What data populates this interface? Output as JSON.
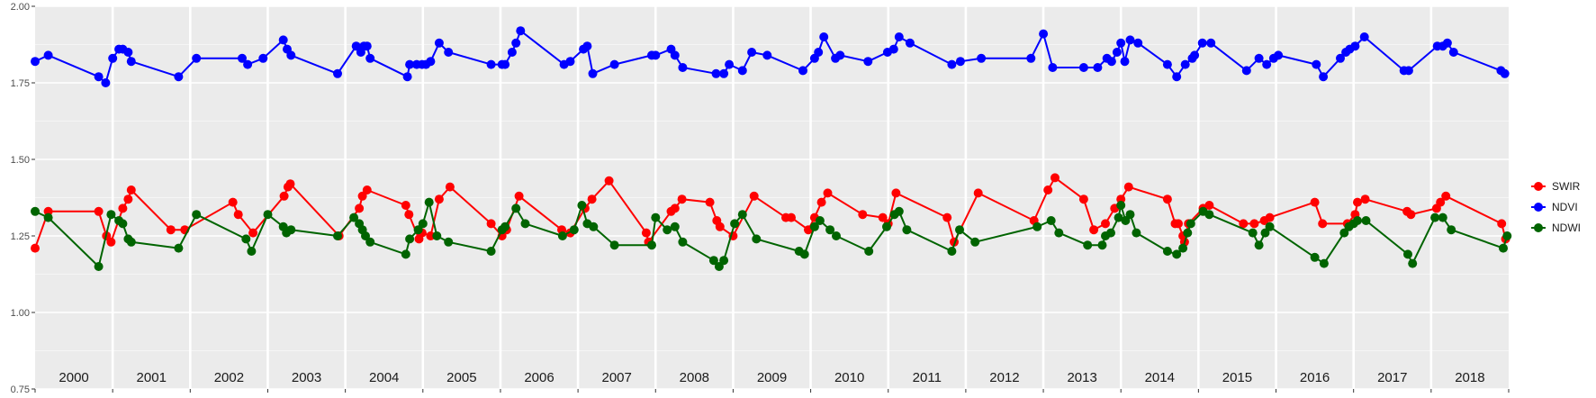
{
  "chart_data": {
    "type": "line",
    "title": "",
    "xlabel": "",
    "ylabel": "",
    "ylim": [
      0.75,
      2.0
    ],
    "y_ticks": [
      "0.75",
      "1.00",
      "1.25",
      "1.50",
      "1.75",
      "2.00"
    ],
    "x_domain": [
      2000.0,
      2019.0
    ],
    "year_labels": [
      "2000",
      "2001",
      "2002",
      "2003",
      "2004",
      "2005",
      "2006",
      "2007",
      "2008",
      "2009",
      "2010",
      "2011",
      "2012",
      "2013",
      "2014",
      "2015",
      "2016",
      "2017",
      "2018"
    ],
    "grid": true,
    "legend_position": "right",
    "series": [
      {
        "name": "SWIR",
        "color": "#ff0000",
        "points": [
          [
            2000.0,
            1.21
          ],
          [
            2000.17,
            1.33
          ],
          [
            2000.82,
            1.33
          ],
          [
            2000.92,
            1.25
          ],
          [
            2000.98,
            1.23
          ],
          [
            2001.13,
            1.34
          ],
          [
            2001.2,
            1.37
          ],
          [
            2001.24,
            1.4
          ],
          [
            2001.75,
            1.27
          ],
          [
            2001.93,
            1.27
          ],
          [
            2002.55,
            1.36
          ],
          [
            2002.62,
            1.32
          ],
          [
            2002.81,
            1.26
          ],
          [
            2003.21,
            1.38
          ],
          [
            2003.26,
            1.41
          ],
          [
            2003.29,
            1.42
          ],
          [
            2003.92,
            1.25
          ],
          [
            2004.18,
            1.34
          ],
          [
            2004.22,
            1.38
          ],
          [
            2004.28,
            1.4
          ],
          [
            2004.78,
            1.35
          ],
          [
            2004.82,
            1.32
          ],
          [
            2004.95,
            1.24
          ],
          [
            2004.99,
            1.26
          ],
          [
            2005.1,
            1.25
          ],
          [
            2005.21,
            1.37
          ],
          [
            2005.35,
            1.41
          ],
          [
            2005.88,
            1.29
          ],
          [
            2006.02,
            1.25
          ],
          [
            2006.08,
            1.27
          ],
          [
            2006.24,
            1.38
          ],
          [
            2006.79,
            1.27
          ],
          [
            2006.9,
            1.26
          ],
          [
            2007.09,
            1.34
          ],
          [
            2007.18,
            1.37
          ],
          [
            2007.4,
            1.43
          ],
          [
            2007.88,
            1.26
          ],
          [
            2007.91,
            1.23
          ],
          [
            2008.2,
            1.33
          ],
          [
            2008.25,
            1.34
          ],
          [
            2008.34,
            1.37
          ],
          [
            2008.7,
            1.36
          ],
          [
            2008.79,
            1.3
          ],
          [
            2008.83,
            1.28
          ],
          [
            2009.0,
            1.25
          ],
          [
            2009.27,
            1.38
          ],
          [
            2009.68,
            1.31
          ],
          [
            2009.75,
            1.31
          ],
          [
            2009.97,
            1.27
          ],
          [
            2010.05,
            1.31
          ],
          [
            2010.14,
            1.36
          ],
          [
            2010.22,
            1.39
          ],
          [
            2010.67,
            1.32
          ],
          [
            2010.93,
            1.31
          ],
          [
            2011.0,
            1.29
          ],
          [
            2011.1,
            1.39
          ],
          [
            2011.76,
            1.31
          ],
          [
            2011.85,
            1.23
          ],
          [
            2012.16,
            1.39
          ],
          [
            2012.88,
            1.3
          ],
          [
            2013.06,
            1.4
          ],
          [
            2013.15,
            1.44
          ],
          [
            2013.52,
            1.37
          ],
          [
            2013.65,
            1.27
          ],
          [
            2013.8,
            1.29
          ],
          [
            2013.92,
            1.34
          ],
          [
            2014.0,
            1.37
          ],
          [
            2014.1,
            1.41
          ],
          [
            2014.6,
            1.37
          ],
          [
            2014.7,
            1.29
          ],
          [
            2014.74,
            1.29
          ],
          [
            2014.8,
            1.25
          ],
          [
            2014.82,
            1.23
          ],
          [
            2014.87,
            1.29
          ],
          [
            2015.06,
            1.34
          ],
          [
            2015.14,
            1.35
          ],
          [
            2015.58,
            1.29
          ],
          [
            2015.72,
            1.29
          ],
          [
            2015.85,
            1.3
          ],
          [
            2015.92,
            1.31
          ],
          [
            2016.5,
            1.36
          ],
          [
            2016.6,
            1.29
          ],
          [
            2016.92,
            1.29
          ],
          [
            2017.02,
            1.32
          ],
          [
            2017.05,
            1.36
          ],
          [
            2017.15,
            1.37
          ],
          [
            2017.69,
            1.33
          ],
          [
            2017.74,
            1.32
          ],
          [
            2018.07,
            1.34
          ],
          [
            2018.12,
            1.36
          ],
          [
            2018.19,
            1.38
          ],
          [
            2018.91,
            1.29
          ],
          [
            2018.96,
            1.24
          ]
        ]
      },
      {
        "name": "NDVI",
        "color": "#0000ff",
        "points": [
          [
            2000.0,
            1.82
          ],
          [
            2000.17,
            1.84
          ],
          [
            2000.82,
            1.77
          ],
          [
            2000.91,
            1.75
          ],
          [
            2001.0,
            1.83
          ],
          [
            2001.08,
            1.86
          ],
          [
            2001.13,
            1.86
          ],
          [
            2001.2,
            1.85
          ],
          [
            2001.24,
            1.82
          ],
          [
            2001.85,
            1.77
          ],
          [
            2002.08,
            1.83
          ],
          [
            2002.67,
            1.83
          ],
          [
            2002.74,
            1.81
          ],
          [
            2002.94,
            1.83
          ],
          [
            2003.2,
            1.89
          ],
          [
            2003.25,
            1.86
          ],
          [
            2003.3,
            1.84
          ],
          [
            2003.9,
            1.78
          ],
          [
            2004.14,
            1.87
          ],
          [
            2004.2,
            1.85
          ],
          [
            2004.24,
            1.87
          ],
          [
            2004.28,
            1.87
          ],
          [
            2004.32,
            1.83
          ],
          [
            2004.8,
            1.77
          ],
          [
            2004.83,
            1.81
          ],
          [
            2004.92,
            1.81
          ],
          [
            2004.99,
            1.81
          ],
          [
            2005.04,
            1.81
          ],
          [
            2005.1,
            1.82
          ],
          [
            2005.21,
            1.88
          ],
          [
            2005.33,
            1.85
          ],
          [
            2005.88,
            1.81
          ],
          [
            2006.02,
            1.81
          ],
          [
            2006.06,
            1.81
          ],
          [
            2006.15,
            1.85
          ],
          [
            2006.2,
            1.88
          ],
          [
            2006.26,
            1.92
          ],
          [
            2006.82,
            1.81
          ],
          [
            2006.9,
            1.82
          ],
          [
            2007.07,
            1.86
          ],
          [
            2007.12,
            1.87
          ],
          [
            2007.19,
            1.78
          ],
          [
            2007.47,
            1.81
          ],
          [
            2007.95,
            1.84
          ],
          [
            2008.0,
            1.84
          ],
          [
            2008.2,
            1.86
          ],
          [
            2008.25,
            1.84
          ],
          [
            2008.35,
            1.8
          ],
          [
            2008.78,
            1.78
          ],
          [
            2008.88,
            1.78
          ],
          [
            2008.95,
            1.81
          ],
          [
            2009.12,
            1.79
          ],
          [
            2009.24,
            1.85
          ],
          [
            2009.44,
            1.84
          ],
          [
            2009.9,
            1.79
          ],
          [
            2010.05,
            1.83
          ],
          [
            2010.1,
            1.85
          ],
          [
            2010.17,
            1.9
          ],
          [
            2010.32,
            1.83
          ],
          [
            2010.38,
            1.84
          ],
          [
            2010.74,
            1.82
          ],
          [
            2010.99,
            1.85
          ],
          [
            2011.07,
            1.86
          ],
          [
            2011.14,
            1.9
          ],
          [
            2011.28,
            1.88
          ],
          [
            2011.82,
            1.81
          ],
          [
            2011.93,
            1.82
          ],
          [
            2012.2,
            1.83
          ],
          [
            2012.84,
            1.83
          ],
          [
            2013.0,
            1.91
          ],
          [
            2013.12,
            1.8
          ],
          [
            2013.52,
            1.8
          ],
          [
            2013.7,
            1.8
          ],
          [
            2013.82,
            1.83
          ],
          [
            2013.88,
            1.82
          ],
          [
            2013.95,
            1.85
          ],
          [
            2014.0,
            1.88
          ],
          [
            2014.05,
            1.82
          ],
          [
            2014.12,
            1.89
          ],
          [
            2014.22,
            1.88
          ],
          [
            2014.6,
            1.81
          ],
          [
            2014.72,
            1.77
          ],
          [
            2014.83,
            1.81
          ],
          [
            2014.92,
            1.83
          ],
          [
            2014.95,
            1.84
          ],
          [
            2015.05,
            1.88
          ],
          [
            2015.16,
            1.88
          ],
          [
            2015.62,
            1.79
          ],
          [
            2015.78,
            1.83
          ],
          [
            2015.88,
            1.81
          ],
          [
            2015.97,
            1.83
          ],
          [
            2016.03,
            1.84
          ],
          [
            2016.52,
            1.81
          ],
          [
            2016.61,
            1.77
          ],
          [
            2016.83,
            1.83
          ],
          [
            2016.9,
            1.85
          ],
          [
            2016.95,
            1.86
          ],
          [
            2017.02,
            1.87
          ],
          [
            2017.14,
            1.9
          ],
          [
            2017.65,
            1.79
          ],
          [
            2017.71,
            1.79
          ],
          [
            2018.08,
            1.87
          ],
          [
            2018.15,
            1.87
          ],
          [
            2018.21,
            1.88
          ],
          [
            2018.29,
            1.85
          ],
          [
            2018.9,
            1.79
          ],
          [
            2018.95,
            1.78
          ]
        ]
      },
      {
        "name": "NDWI",
        "color": "#006400",
        "points": [
          [
            2000.0,
            1.33
          ],
          [
            2000.17,
            1.31
          ],
          [
            2000.82,
            1.15
          ],
          [
            2000.98,
            1.32
          ],
          [
            2001.08,
            1.3
          ],
          [
            2001.13,
            1.29
          ],
          [
            2001.2,
            1.24
          ],
          [
            2001.24,
            1.23
          ],
          [
            2001.85,
            1.21
          ],
          [
            2002.08,
            1.32
          ],
          [
            2002.72,
            1.24
          ],
          [
            2002.79,
            1.2
          ],
          [
            2003.0,
            1.32
          ],
          [
            2003.2,
            1.28
          ],
          [
            2003.24,
            1.26
          ],
          [
            2003.3,
            1.27
          ],
          [
            2003.9,
            1.25
          ],
          [
            2004.11,
            1.31
          ],
          [
            2004.18,
            1.29
          ],
          [
            2004.22,
            1.27
          ],
          [
            2004.26,
            1.25
          ],
          [
            2004.32,
            1.23
          ],
          [
            2004.78,
            1.19
          ],
          [
            2004.83,
            1.24
          ],
          [
            2004.94,
            1.27
          ],
          [
            2005.0,
            1.29
          ],
          [
            2005.08,
            1.36
          ],
          [
            2005.18,
            1.25
          ],
          [
            2005.33,
            1.23
          ],
          [
            2005.88,
            1.2
          ],
          [
            2006.02,
            1.27
          ],
          [
            2006.06,
            1.28
          ],
          [
            2006.2,
            1.34
          ],
          [
            2006.32,
            1.29
          ],
          [
            2006.8,
            1.25
          ],
          [
            2006.95,
            1.27
          ],
          [
            2007.05,
            1.35
          ],
          [
            2007.12,
            1.29
          ],
          [
            2007.2,
            1.28
          ],
          [
            2007.47,
            1.22
          ],
          [
            2007.95,
            1.22
          ],
          [
            2008.0,
            1.31
          ],
          [
            2008.15,
            1.27
          ],
          [
            2008.25,
            1.28
          ],
          [
            2008.35,
            1.23
          ],
          [
            2008.75,
            1.17
          ],
          [
            2008.82,
            1.15
          ],
          [
            2008.88,
            1.17
          ],
          [
            2009.02,
            1.29
          ],
          [
            2009.12,
            1.32
          ],
          [
            2009.3,
            1.24
          ],
          [
            2009.85,
            1.2
          ],
          [
            2009.92,
            1.19
          ],
          [
            2010.05,
            1.28
          ],
          [
            2010.12,
            1.3
          ],
          [
            2010.25,
            1.27
          ],
          [
            2010.33,
            1.25
          ],
          [
            2010.75,
            1.2
          ],
          [
            2010.98,
            1.28
          ],
          [
            2011.08,
            1.32
          ],
          [
            2011.14,
            1.33
          ],
          [
            2011.24,
            1.27
          ],
          [
            2011.82,
            1.2
          ],
          [
            2011.92,
            1.27
          ],
          [
            2012.12,
            1.23
          ],
          [
            2012.92,
            1.28
          ],
          [
            2013.1,
            1.3
          ],
          [
            2013.2,
            1.26
          ],
          [
            2013.57,
            1.22
          ],
          [
            2013.76,
            1.22
          ],
          [
            2013.8,
            1.25
          ],
          [
            2013.87,
            1.26
          ],
          [
            2013.97,
            1.31
          ],
          [
            2014.0,
            1.35
          ],
          [
            2014.06,
            1.3
          ],
          [
            2014.12,
            1.32
          ],
          [
            2014.2,
            1.26
          ],
          [
            2014.6,
            1.2
          ],
          [
            2014.72,
            1.19
          ],
          [
            2014.8,
            1.21
          ],
          [
            2014.86,
            1.26
          ],
          [
            2014.9,
            1.29
          ],
          [
            2015.06,
            1.33
          ],
          [
            2015.14,
            1.32
          ],
          [
            2015.7,
            1.26
          ],
          [
            2015.78,
            1.22
          ],
          [
            2015.86,
            1.26
          ],
          [
            2015.92,
            1.28
          ],
          [
            2016.5,
            1.18
          ],
          [
            2016.62,
            1.16
          ],
          [
            2016.88,
            1.26
          ],
          [
            2016.94,
            1.28
          ],
          [
            2017.0,
            1.29
          ],
          [
            2017.05,
            1.3
          ],
          [
            2017.16,
            1.3
          ],
          [
            2017.7,
            1.19
          ],
          [
            2017.76,
            1.16
          ],
          [
            2018.05,
            1.31
          ],
          [
            2018.15,
            1.31
          ],
          [
            2018.26,
            1.27
          ],
          [
            2018.93,
            1.21
          ],
          [
            2018.98,
            1.25
          ]
        ]
      }
    ]
  }
}
